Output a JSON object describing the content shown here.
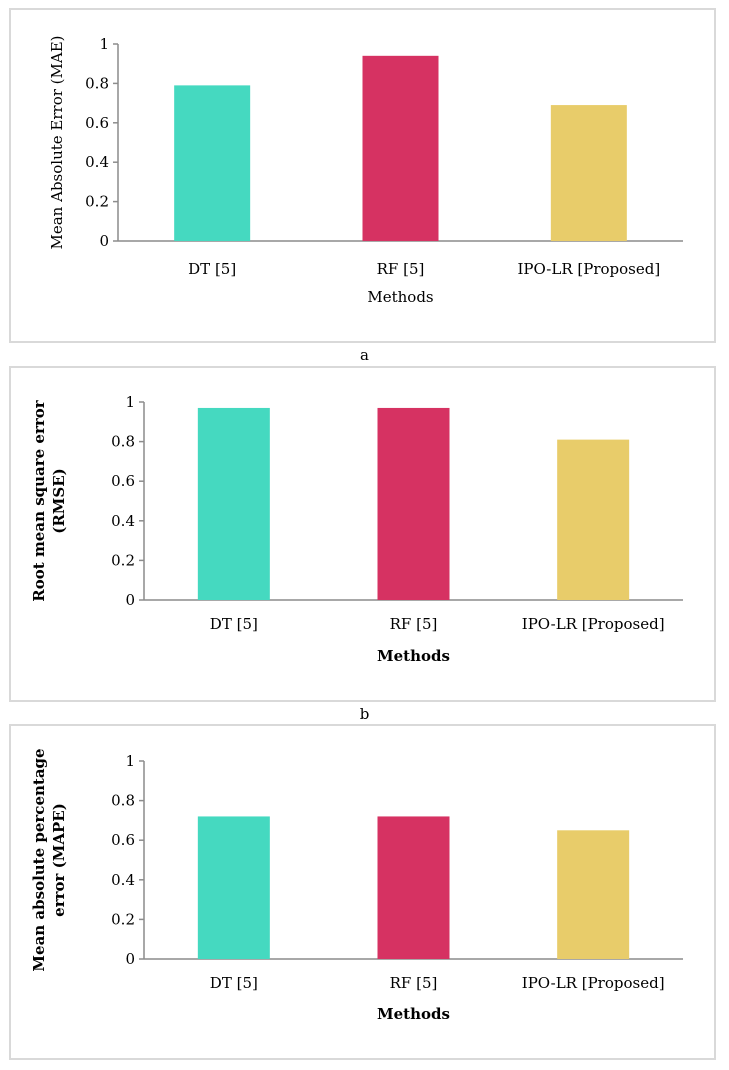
{
  "chart_data": [
    {
      "type": "bar",
      "categories": [
        "DT [5]",
        "RF [5]",
        "IPO-LR [Proposed]"
      ],
      "values": [
        0.79,
        0.94,
        0.69
      ],
      "colors": [
        "#45d9c0",
        "#d63262",
        "#e8cc6a"
      ],
      "ylim": [
        0,
        1
      ],
      "yticks": [
        "0",
        "0.2",
        "0.4",
        "0.6",
        "0.8",
        "1"
      ],
      "xlabel": "Methods",
      "ylabel": "Mean Absolute Error (MAE)",
      "ylabel_lines": [
        "Mean Absolute Error (MAE)"
      ],
      "bold_titles": false,
      "caption": "a"
    },
    {
      "type": "bar",
      "categories": [
        "DT [5]",
        "RF [5]",
        "IPO-LR [Proposed]"
      ],
      "values": [
        0.97,
        0.97,
        0.81
      ],
      "colors": [
        "#45d9c0",
        "#d63262",
        "#e8cc6a"
      ],
      "ylim": [
        0,
        1
      ],
      "yticks": [
        "0",
        "0.2",
        "0.4",
        "0.6",
        "0.8",
        "1"
      ],
      "xlabel": "Methods",
      "ylabel": "Root mean square error (RMSE)",
      "ylabel_lines": [
        "Root mean square error",
        "(RMSE)"
      ],
      "bold_titles": true,
      "caption": "b"
    },
    {
      "type": "bar",
      "categories": [
        "DT [5]",
        "RF [5]",
        "IPO-LR [Proposed]"
      ],
      "values": [
        0.72,
        0.72,
        0.65
      ],
      "colors": [
        "#45d9c0",
        "#d63262",
        "#e8cc6a"
      ],
      "ylim": [
        0,
        1
      ],
      "yticks": [
        "0",
        "0.2",
        "0.4",
        "0.6",
        "0.8",
        "1"
      ],
      "xlabel": "Methods",
      "ylabel": "Mean absolute percentage error (MAPE)",
      "ylabel_lines": [
        "Mean absolute percentage",
        "error (MAPE)"
      ],
      "bold_titles": true,
      "caption": ""
    }
  ]
}
